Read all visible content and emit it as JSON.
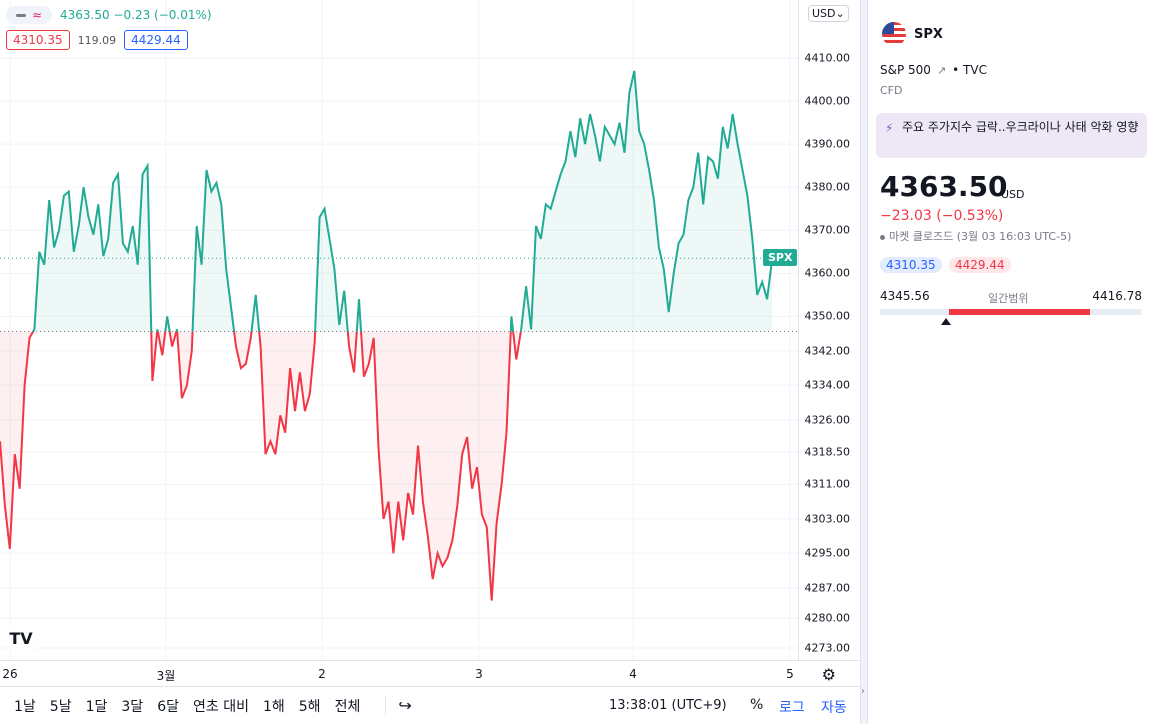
{
  "legend": {
    "last_line": "4363.50  −0.23 (−0.01%)",
    "bid": "4310.35",
    "spread": "119.09",
    "ask": "4429.44"
  },
  "scale": {
    "currency": "USD⌄",
    "series_tag": "SPX",
    "ticks": [
      "4410.00",
      "4400.00",
      "4390.00",
      "4380.00",
      "4370.00",
      "4360.00",
      "4350.00",
      "4342.00",
      "4334.00",
      "4326.00",
      "4318.50",
      "4311.00",
      "4303.00",
      "4295.00",
      "4287.00",
      "4280.00",
      "4273.00"
    ]
  },
  "time_axis": {
    "labels": [
      "26",
      "3월",
      "2",
      "3",
      "4",
      "5"
    ],
    "settings_icon": "gear-icon"
  },
  "toolbar": {
    "ranges": [
      "1날",
      "5날",
      "1달",
      "3달",
      "6달",
      "연초 대비",
      "1해",
      "5해",
      "전체"
    ],
    "calendar_icon": "calendar-goto-icon",
    "clock": "13:38:01 (UTC+9)",
    "percent": "%",
    "log": "로그",
    "auto": "자동"
  },
  "logo_text": "TV",
  "panel": {
    "ticker": "SPX",
    "name": "S&P 500",
    "exchange": "• TVC",
    "type": "CFD",
    "news": "주요 주가지수 급락..우크라이나 사태 악화 영향",
    "price": "4363.50",
    "unit": "USD",
    "change": "−23.03 (−0.53%)",
    "status": "마켓 클로즈드  (3월 03 16:03 UTC-5)",
    "bid": "4310.35",
    "ask": "4429.44",
    "range_low": "4345.56",
    "range_label": "일간범위",
    "range_high": "4416.78",
    "range_current_frac": 0.253,
    "range_fill_frac": [
      0.262,
      0.8
    ]
  },
  "colors": {
    "up": "#22ab94",
    "down": "#f23645",
    "accent": "#2962ff"
  },
  "chart_data": {
    "type": "area",
    "baseline": 4346.5,
    "last_value": 4363.5,
    "ylim": [
      4270,
      4414
    ],
    "x_labels": [
      "26",
      "3월",
      "2",
      "3",
      "4",
      "5"
    ],
    "values": [
      4321,
      4306,
      4296,
      4318,
      4310,
      4334,
      4345,
      4347,
      4365,
      4362,
      4377,
      4366,
      4370,
      4378,
      4379,
      4365,
      4371,
      4380,
      4373,
      4369,
      4376,
      4364,
      4368,
      4381,
      4383,
      4367,
      4365,
      4371,
      4362,
      4383,
      4385,
      4335,
      4347,
      4341,
      4350,
      4343,
      4347,
      4331,
      4334,
      4342,
      4371,
      4362,
      4384,
      4379,
      4381,
      4376,
      4361,
      4352,
      4343,
      4338,
      4339,
      4345,
      4355,
      4343,
      4318,
      4321,
      4318,
      4327,
      4323,
      4338,
      4328,
      4337,
      4328,
      4332,
      4344,
      4373,
      4375,
      4368,
      4361,
      4348,
      4356,
      4343,
      4337,
      4354,
      4336,
      4339,
      4345,
      4319,
      4303,
      4307,
      4295,
      4307,
      4298,
      4309,
      4304,
      4320,
      4307,
      4299,
      4289,
      4295,
      4292,
      4294,
      4298,
      4306,
      4318,
      4322,
      4310,
      4315,
      4304,
      4301,
      4284,
      4302,
      4311,
      4323,
      4350,
      4340,
      4347,
      4357,
      4347,
      4371,
      4368,
      4376,
      4375,
      4379,
      4383,
      4386,
      4393,
      4387,
      4396,
      4390,
      4397,
      4392,
      4386,
      4394,
      4392,
      4390,
      4395,
      4388,
      4402,
      4407,
      4393,
      4390,
      4384,
      4377,
      4366,
      4361,
      4351,
      4360,
      4367,
      4369,
      4377,
      4380,
      4388,
      4376,
      4387,
      4386,
      4382,
      4394,
      4389,
      4397,
      4390,
      4384,
      4378,
      4368,
      4355,
      4358,
      4354,
      4363
    ]
  }
}
